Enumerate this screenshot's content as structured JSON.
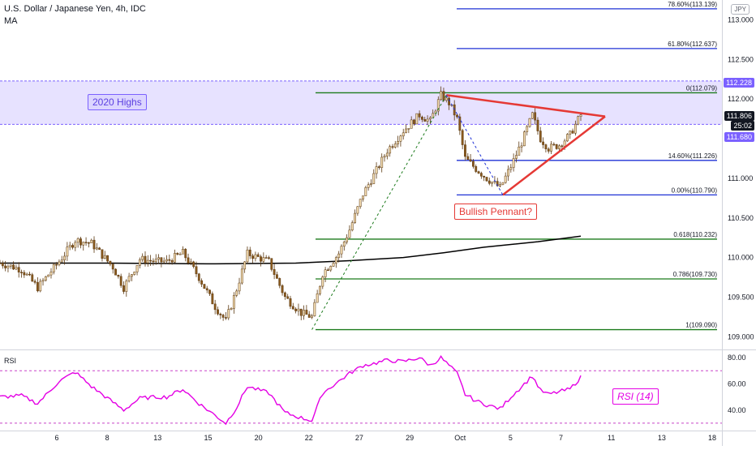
{
  "chart_data": [
    {
      "type": "candlestick",
      "title": "U.S. Dollar / Japanese Yen, 4h, IDC",
      "indicator": "MA",
      "currency": "JPY",
      "ylim": [
        108.85,
        113.25
      ],
      "y_ticks": [
        "113.000",
        "112.500",
        "112.000",
        "111.500",
        "111.000",
        "110.500",
        "110.000",
        "109.500",
        "109.000"
      ],
      "x_ticks": [
        "6",
        "8",
        "13",
        "15",
        "20",
        "22",
        "27",
        "29",
        "Oct",
        "5",
        "7",
        "11",
        "13",
        "18"
      ],
      "price_anchors": [
        {
          "t": 0,
          "p": 109.93
        },
        {
          "t": 8,
          "p": 109.85
        },
        {
          "t": 14,
          "p": 109.62
        },
        {
          "t": 22,
          "p": 109.95
        },
        {
          "t": 28,
          "p": 110.22
        },
        {
          "t": 34,
          "p": 110.18
        },
        {
          "t": 42,
          "p": 109.88
        },
        {
          "t": 46,
          "p": 109.62
        },
        {
          "t": 52,
          "p": 109.98
        },
        {
          "t": 58,
          "p": 109.95
        },
        {
          "t": 62,
          "p": 109.95
        },
        {
          "t": 68,
          "p": 110.06
        },
        {
          "t": 74,
          "p": 109.75
        },
        {
          "t": 80,
          "p": 109.38
        },
        {
          "t": 84,
          "p": 109.2
        },
        {
          "t": 88,
          "p": 109.6
        },
        {
          "t": 92,
          "p": 110.05
        },
        {
          "t": 100,
          "p": 109.95
        },
        {
          "t": 106,
          "p": 109.5
        },
        {
          "t": 112,
          "p": 109.3
        },
        {
          "t": 116,
          "p": 109.25
        },
        {
          "t": 120,
          "p": 109.8
        },
        {
          "t": 126,
          "p": 110.05
        },
        {
          "t": 130,
          "p": 110.35
        },
        {
          "t": 135,
          "p": 110.8
        },
        {
          "t": 140,
          "p": 111.1
        },
        {
          "t": 144,
          "p": 111.35
        },
        {
          "t": 150,
          "p": 111.6
        },
        {
          "t": 156,
          "p": 111.8
        },
        {
          "t": 160,
          "p": 111.72
        },
        {
          "t": 164,
          "p": 112.05
        },
        {
          "t": 167,
          "p": 111.95
        },
        {
          "t": 170,
          "p": 111.75
        },
        {
          "t": 173,
          "p": 111.25
        },
        {
          "t": 177,
          "p": 111.12
        },
        {
          "t": 181,
          "p": 111.0
        },
        {
          "t": 186,
          "p": 110.88
        },
        {
          "t": 190,
          "p": 111.15
        },
        {
          "t": 194,
          "p": 111.45
        },
        {
          "t": 198,
          "p": 111.8
        },
        {
          "t": 201,
          "p": 111.5
        },
        {
          "t": 204,
          "p": 111.38
        },
        {
          "t": 208,
          "p": 111.42
        },
        {
          "t": 212,
          "p": 111.55
        },
        {
          "t": 216,
          "p": 111.8
        }
      ],
      "moving_average": [
        {
          "t": 0,
          "p": 109.93
        },
        {
          "t": 40,
          "p": 109.93
        },
        {
          "t": 80,
          "p": 109.92
        },
        {
          "t": 110,
          "p": 109.93
        },
        {
          "t": 130,
          "p": 109.96
        },
        {
          "t": 150,
          "p": 110.0
        },
        {
          "t": 165,
          "p": 110.06
        },
        {
          "t": 180,
          "p": 110.13
        },
        {
          "t": 200,
          "p": 110.2
        },
        {
          "t": 216,
          "p": 110.27
        }
      ],
      "fibonacci_levels": [
        {
          "ratio": "78.60%",
          "value": "113.139",
          "label": "78.60%(113.139)",
          "price": 113.139,
          "color": "#1f32d6"
        },
        {
          "ratio": "61.80%",
          "value": "112.637",
          "label": "61.80%(112.637)",
          "price": 112.637,
          "color": "#1f32d6"
        },
        {
          "ratio": "0",
          "value": "112.079",
          "label": "0(112.079)",
          "price": 112.079,
          "color": "#1b7a1b"
        },
        {
          "ratio": "14.60%",
          "value": "111.226",
          "label": "14.60%(111.226)",
          "price": 111.226,
          "color": "#1f32d6"
        },
        {
          "ratio": "0.00%",
          "value": "110.790",
          "label": "0.00%(110.790)",
          "price": 110.79,
          "color": "#1f32d6"
        },
        {
          "ratio": "0.618",
          "value": "110.232",
          "label": "0.618(110.232)",
          "price": 110.232,
          "color": "#1b7a1b"
        },
        {
          "ratio": "0.786",
          "value": "109.730",
          "label": "0.786(109.730)",
          "price": 109.73,
          "color": "#1b7a1b"
        },
        {
          "ratio": "1",
          "value": "109.090",
          "label": "1(109.090)",
          "price": 109.09,
          "color": "#1b7a1b"
        }
      ],
      "highs_zone": {
        "label": "2020 Highs",
        "upper": 112.228,
        "lower": 111.68
      },
      "pennant": {
        "label": "Bullish Pennant?",
        "color": "#e53935"
      },
      "price_tags": {
        "zone_top": "112.228",
        "current": "111.806",
        "countdown": "25:02",
        "zone_bottom": "111.680"
      },
      "colors": {
        "up": "#f5deb3",
        "down": "#8a5a1e",
        "ma": "#000000",
        "zone": "#7b61ff"
      }
    },
    {
      "type": "line",
      "title": "RSI",
      "legend": "RSI (14)",
      "ylim": [
        25,
        85
      ],
      "y_ticks": [
        "80.00",
        "60.00",
        "40.00"
      ],
      "bands": [
        70,
        30
      ],
      "line_color": "#e400e4",
      "values": [
        {
          "t": 0,
          "v": 50
        },
        {
          "t": 8,
          "v": 51
        },
        {
          "t": 14,
          "v": 45
        },
        {
          "t": 22,
          "v": 62
        },
        {
          "t": 28,
          "v": 69
        },
        {
          "t": 34,
          "v": 58
        },
        {
          "t": 42,
          "v": 46
        },
        {
          "t": 46,
          "v": 40
        },
        {
          "t": 52,
          "v": 49
        },
        {
          "t": 58,
          "v": 50
        },
        {
          "t": 62,
          "v": 50
        },
        {
          "t": 68,
          "v": 56
        },
        {
          "t": 74,
          "v": 45
        },
        {
          "t": 80,
          "v": 36
        },
        {
          "t": 84,
          "v": 30
        },
        {
          "t": 88,
          "v": 42
        },
        {
          "t": 92,
          "v": 58
        },
        {
          "t": 100,
          "v": 53
        },
        {
          "t": 106,
          "v": 38
        },
        {
          "t": 112,
          "v": 34
        },
        {
          "t": 116,
          "v": 32
        },
        {
          "t": 120,
          "v": 53
        },
        {
          "t": 126,
          "v": 62
        },
        {
          "t": 130,
          "v": 68
        },
        {
          "t": 135,
          "v": 74
        },
        {
          "t": 140,
          "v": 76
        },
        {
          "t": 144,
          "v": 78
        },
        {
          "t": 150,
          "v": 77
        },
        {
          "t": 156,
          "v": 80
        },
        {
          "t": 160,
          "v": 74
        },
        {
          "t": 164,
          "v": 80
        },
        {
          "t": 167,
          "v": 74
        },
        {
          "t": 170,
          "v": 68
        },
        {
          "t": 173,
          "v": 52
        },
        {
          "t": 177,
          "v": 47
        },
        {
          "t": 181,
          "v": 44
        },
        {
          "t": 186,
          "v": 41
        },
        {
          "t": 190,
          "v": 50
        },
        {
          "t": 194,
          "v": 58
        },
        {
          "t": 198,
          "v": 66
        },
        {
          "t": 201,
          "v": 55
        },
        {
          "t": 204,
          "v": 52
        },
        {
          "t": 208,
          "v": 54
        },
        {
          "t": 212,
          "v": 56
        },
        {
          "t": 216,
          "v": 65
        }
      ]
    }
  ]
}
